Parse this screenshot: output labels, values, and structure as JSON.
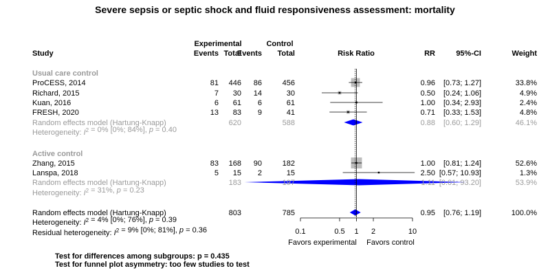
{
  "chart_data": {
    "type": "forest",
    "title": "Severe sepsis or septic shock and fluid responsiveness assessment: mortality",
    "headers": {
      "study": "Study",
      "experimental": "Experimental",
      "control": "Control",
      "events": "Events",
      "total": "Total",
      "risk_ratio": "Risk Ratio",
      "rr": "RR",
      "ci": "95%-CI",
      "weight": "Weight"
    },
    "x_axis": {
      "scale": "log",
      "range": [
        0.1,
        10
      ],
      "ticks": [
        {
          "value": 0.1,
          "label": "0.1"
        },
        {
          "value": 0.5,
          "label": "0.5"
        },
        {
          "value": 1,
          "label": "1"
        },
        {
          "value": 2,
          "label": "2"
        },
        {
          "value": 10,
          "label": "10"
        }
      ],
      "favors_left": "Favors experimental",
      "favors_right": "Favors control"
    },
    "subgroups": [
      {
        "label": "Usual care control",
        "studies": [
          {
            "name": "ProCESS, 2014",
            "e_events": "81",
            "e_total": "446",
            "c_events": "86",
            "c_total": "456",
            "rr": 0.96,
            "lower": 0.73,
            "upper": 1.27,
            "rr_text": "0.96",
            "ci_text": "[0.73; 1.27]",
            "weight_text": "33.8%",
            "weight": 33.8
          },
          {
            "name": "Richard, 2015",
            "e_events": "7",
            "e_total": "30",
            "c_events": "14",
            "c_total": "30",
            "rr": 0.5,
            "lower": 0.24,
            "upper": 1.06,
            "rr_text": "0.50",
            "ci_text": "[0.24; 1.06]",
            "weight_text": "4.9%",
            "weight": 4.9
          },
          {
            "name": "Kuan, 2016",
            "e_events": "6",
            "e_total": "61",
            "c_events": "6",
            "c_total": "61",
            "rr": 1.0,
            "lower": 0.34,
            "upper": 2.93,
            "rr_text": "1.00",
            "ci_text": "[0.34; 2.93]",
            "weight_text": "2.4%",
            "weight": 2.4
          },
          {
            "name": "FRESH, 2020",
            "e_events": "13",
            "e_total": "83",
            "c_events": "9",
            "c_total": "41",
            "rr": 0.71,
            "lower": 0.33,
            "upper": 1.53,
            "rr_text": "0.71",
            "ci_text": "[0.33; 1.53]",
            "weight_text": "4.8%",
            "weight": 4.8
          }
        ],
        "pooled": {
          "label": "Random effects model (Hartung-Knapp)",
          "e_total": "620",
          "c_total": "588",
          "rr": 0.88,
          "lower": 0.6,
          "upper": 1.29,
          "rr_text": "0.88",
          "ci_text": "[0.60; 1.29]",
          "weight_text": "46.1%"
        },
        "heterogeneity": {
          "prefix": "Heterogeneity: ",
          "i2": "I",
          "sup": "2",
          "text": " = 0% [0%; 84%], ",
          "p": "p",
          "p_text": " = 0.40"
        }
      },
      {
        "label": "Active control",
        "studies": [
          {
            "name": "Zhang, 2015",
            "e_events": "83",
            "e_total": "168",
            "c_events": "90",
            "c_total": "182",
            "rr": 1.0,
            "lower": 0.81,
            "upper": 1.24,
            "rr_text": "1.00",
            "ci_text": "[0.81; 1.24]",
            "weight_text": "52.6%",
            "weight": 52.6
          },
          {
            "name": "Lanspa, 2018",
            "e_events": "5",
            "e_total": "15",
            "c_events": "2",
            "c_total": "15",
            "rr": 2.5,
            "lower": 0.57,
            "upper": 10.93,
            "rr_text": "2.50",
            "ci_text": "[0.57; 10.93]",
            "weight_text": "1.3%",
            "weight": 1.3
          }
        ],
        "pooled": {
          "label": "Random effects model (Hartung-Knapp)",
          "e_total": "183",
          "c_total": "197",
          "rr": 1.11,
          "lower": 0.01,
          "upper": 93.2,
          "rr_text": "1.11",
          "ci_text": "[0.01; 93.20]",
          "weight_text": "53.9%"
        },
        "heterogeneity": {
          "prefix": "Heterogeneity: ",
          "i2": "I",
          "sup": "2",
          "text": " = 31%, ",
          "p": "p",
          "p_text": " = 0.23"
        }
      }
    ],
    "overall": {
      "label": "Random effects model (Hartung-Knapp)",
      "e_total": "803",
      "c_total": "785",
      "rr": 0.95,
      "lower": 0.76,
      "upper": 1.19,
      "rr_text": "0.95",
      "ci_text": "[0.76; 1.19]",
      "weight_text": "100.0%",
      "heterogeneity": {
        "prefix": "Heterogeneity: ",
        "i2": "I",
        "sup": "2",
        "text": " = 4% [0%; 76%], ",
        "p": "p",
        "p_text": " = 0.39"
      },
      "residual": {
        "prefix": "Residual heterogeneity: ",
        "i2": "I",
        "sup": "2",
        "text": " = 9% [0%; 81%], ",
        "p": "p",
        "p_text": " = 0.36"
      }
    },
    "tests": [
      "Test for differences among subgroups: p = 0.435",
      "Test for funnel plot asymmetry: too few studies to test"
    ],
    "colors": {
      "text": "#000000",
      "muted_text": "#9a9a9a",
      "study_square": "#bdbdbd",
      "diamond": "#0000ff",
      "lines": "#000000"
    }
  }
}
